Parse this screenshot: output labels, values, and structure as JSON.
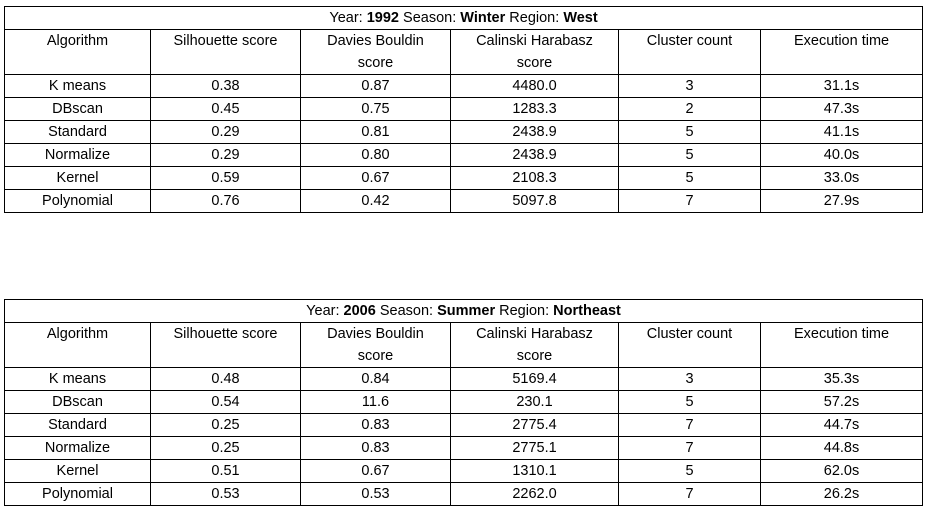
{
  "headers": [
    "Algorithm",
    "Silhouette score",
    "Davies Bouldin score",
    "Calinski Harabasz score",
    "Cluster count",
    "Execution time"
  ],
  "tables": [
    {
      "title": {
        "year_label": "Year:",
        "year": "1992",
        "season_label": "Season:",
        "season": "Winter",
        "region_label": "Region:",
        "region": "West"
      },
      "rows": [
        [
          "K means",
          "0.38",
          "0.87",
          "4480.0",
          "3",
          "31.1s"
        ],
        [
          "DBscan",
          "0.45",
          "0.75",
          "1283.3",
          "2",
          "47.3s"
        ],
        [
          "Standard",
          "0.29",
          "0.81",
          "2438.9",
          "5",
          "41.1s"
        ],
        [
          "Normalize",
          "0.29",
          "0.80",
          "2438.9",
          "5",
          "40.0s"
        ],
        [
          "Kernel",
          "0.59",
          "0.67",
          "2108.3",
          "5",
          "33.0s"
        ],
        [
          "Polynomial",
          "0.76",
          "0.42",
          "5097.8",
          "7",
          "27.9s"
        ]
      ]
    },
    {
      "title": {
        "year_label": "Year:",
        "year": "2006",
        "season_label": "Season:",
        "season": "Summer",
        "region_label": "Region:",
        "region": "Northeast"
      },
      "rows": [
        [
          "K means",
          "0.48",
          "0.84",
          "5169.4",
          "3",
          "35.3s"
        ],
        [
          "DBscan",
          "0.54",
          "11.6",
          "230.1",
          "5",
          "57.2s"
        ],
        [
          "Standard",
          "0.25",
          "0.83",
          "2775.4",
          "7",
          "44.7s"
        ],
        [
          "Normalize",
          "0.25",
          "0.83",
          "2775.1",
          "7",
          "44.8s"
        ],
        [
          "Kernel",
          "0.51",
          "0.67",
          "1310.1",
          "5",
          "62.0s"
        ],
        [
          "Polynomial",
          "0.53",
          "0.53",
          "2262.0",
          "7",
          "26.2s"
        ]
      ]
    }
  ]
}
